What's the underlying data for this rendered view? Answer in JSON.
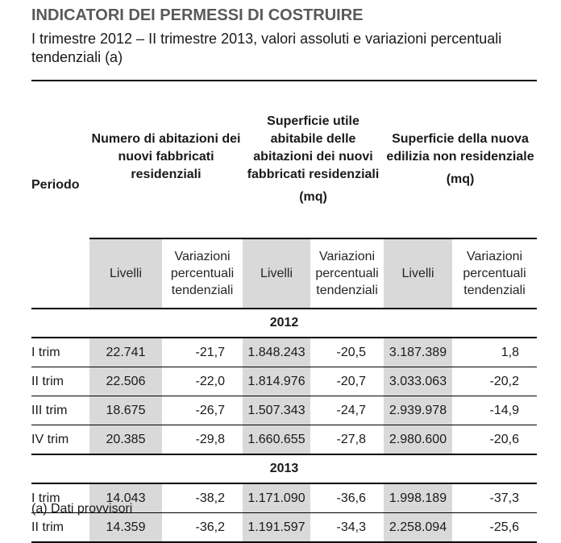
{
  "title": "INDICATORI DEI PERMESSI DI COSTRUIRE",
  "subtitle": "I trimestre 2012 – II trimestre 2013, valori assoluti e variazioni percentuali tendenziali (a)",
  "header": {
    "period": "Periodo",
    "groups": [
      {
        "label": "Numero di abitazioni dei nuovi fabbricati residenziali",
        "unit": ""
      },
      {
        "label": "Superficie utile abitabile delle abitazioni dei nuovi fabbricati residenziali",
        "unit": "(mq)"
      },
      {
        "label": "Superficie della nuova edilizia non residenziale",
        "unit": "(mq)"
      }
    ],
    "sub": {
      "levels": "Livelli",
      "variations": "Variazioni percentuali tendenziali"
    }
  },
  "sections": [
    {
      "year": "2012",
      "rows": [
        {
          "period": "I trim",
          "values": [
            "22.741",
            "-21,7",
            "1.848.243",
            "-20,5",
            "3.187.389",
            "1,8"
          ]
        },
        {
          "period": "II trim",
          "values": [
            "22.506",
            "-22,0",
            "1.814.976",
            "-20,7",
            "3.033.063",
            "-20,2"
          ]
        },
        {
          "period": "III trim",
          "values": [
            "18.675",
            "-26,7",
            "1.507.343",
            "-24,7",
            "2.939.978",
            "-14,9"
          ]
        },
        {
          "period": "IV trim",
          "values": [
            "20.385",
            "-29,8",
            "1.660.655",
            "-27,8",
            "2.980.600",
            "-20,6"
          ]
        }
      ]
    },
    {
      "year": "2013",
      "rows": [
        {
          "period": "I trim",
          "values": [
            "14.043",
            "-38,2",
            "1.171.090",
            "-36,6",
            "1.998.189",
            "-37,3"
          ]
        },
        {
          "period": "II trim",
          "values": [
            "14.359",
            "-36,2",
            "1.191.597",
            "-34,3",
            "2.258.094",
            "-25,6"
          ]
        }
      ]
    }
  ],
  "footnote": "(a)   Dati provvisori"
}
